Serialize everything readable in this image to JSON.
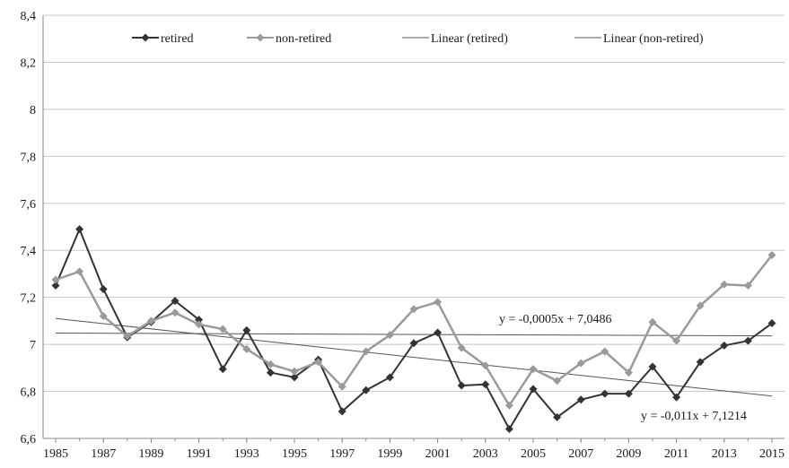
{
  "chart_data": {
    "type": "line",
    "title": "",
    "xlabel": "",
    "ylabel": "",
    "x": [
      1985,
      1986,
      1987,
      1988,
      1989,
      1990,
      1991,
      1992,
      1993,
      1994,
      1995,
      1996,
      1997,
      1998,
      1999,
      2000,
      2001,
      2002,
      2003,
      2004,
      2005,
      2006,
      2007,
      2008,
      2009,
      2010,
      2011,
      2012,
      2013,
      2014,
      2015
    ],
    "x_tick_labels": [
      "1985",
      "1987",
      "1989",
      "1991",
      "1993",
      "1995",
      "1997",
      "1999",
      "2001",
      "2003",
      "2005",
      "2007",
      "2009",
      "2011",
      "2013",
      "2015"
    ],
    "y_tick_labels": [
      "6,6",
      "6,8",
      "7",
      "7,2",
      "7,4",
      "7,6",
      "7,8",
      "8",
      "8,2",
      "8,4"
    ],
    "ylim": [
      6.6,
      8.4
    ],
    "xlim": [
      1985,
      2015
    ],
    "grid": "horizontal",
    "legend_position": "top",
    "series": [
      {
        "name": "retired",
        "color": "#333333",
        "marker": "diamond",
        "values": [
          7.25,
          7.49,
          7.235,
          7.03,
          7.095,
          7.185,
          7.105,
          6.895,
          7.06,
          6.88,
          6.86,
          6.935,
          6.715,
          6.805,
          6.86,
          7.005,
          7.05,
          6.825,
          6.83,
          6.64,
          6.81,
          6.69,
          6.765,
          6.79,
          6.79,
          6.905,
          6.775,
          6.925,
          6.995,
          7.015,
          7.09
        ]
      },
      {
        "name": "non-retired",
        "color": "#9a9a9a",
        "marker": "diamond",
        "values": [
          7.275,
          7.31,
          7.12,
          7.035,
          7.1,
          7.135,
          7.085,
          7.065,
          6.98,
          6.915,
          6.885,
          6.925,
          6.82,
          6.97,
          7.04,
          7.15,
          7.18,
          6.985,
          6.91,
          6.74,
          6.895,
          6.845,
          6.92,
          6.97,
          6.88,
          7.095,
          7.015,
          7.165,
          7.255,
          7.25,
          7.38
        ]
      }
    ],
    "trendlines": [
      {
        "name": "Linear (retired)",
        "color": "#555555",
        "y_start": 7.11,
        "y_end": 6.78,
        "equation": "y = -0,011x + 7,1214"
      },
      {
        "name": "Linear (non-retired)",
        "color": "#555555",
        "y_start": 7.048,
        "y_end": 7.036,
        "equation": "y = -0,0005x + 7,0486"
      }
    ],
    "legend": [
      "retired",
      "non-retired",
      "Linear (retired)",
      "Linear (non-retired)"
    ]
  }
}
